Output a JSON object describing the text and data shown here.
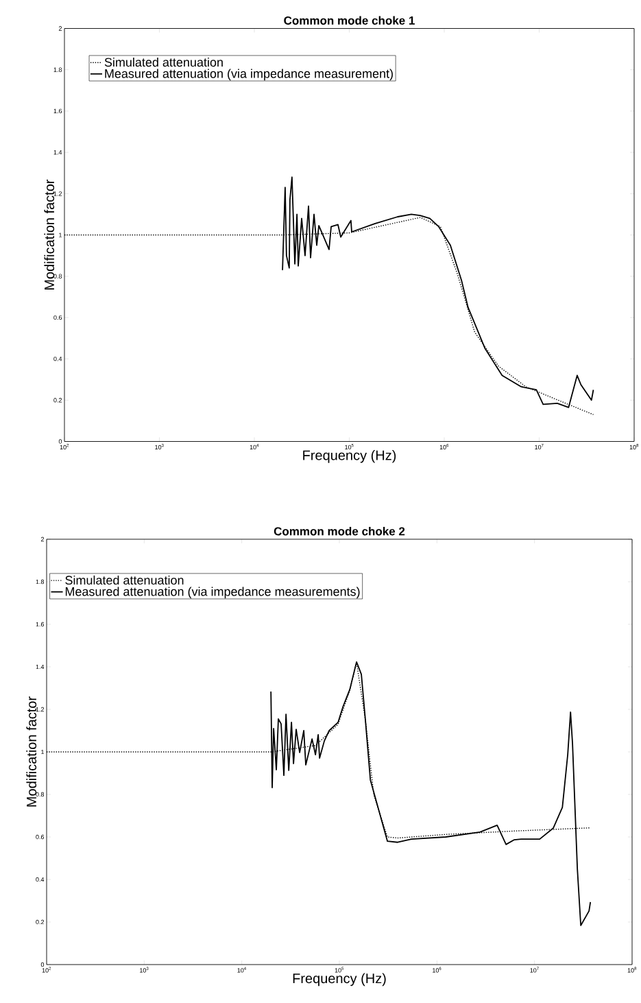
{
  "chart_data": [
    {
      "type": "line",
      "title": "Common mode choke 1",
      "xlabel": "Frequency (Hz)",
      "ylabel": "Modification factor",
      "log": "x",
      "legend": "top left",
      "xlim": [
        100,
        100000000
      ],
      "ylim": [
        0,
        2
      ],
      "xticks": [
        {
          "value": 100,
          "label": "10$^{2}$"
        },
        {
          "value": 1000,
          "label": "10$^{3}$"
        },
        {
          "value": 10000,
          "label": "10$^{4}$"
        },
        {
          "value": 100000,
          "label": "10$^{5}$"
        },
        {
          "value": 1000000,
          "label": "10$^{6}$"
        },
        {
          "value": 10000000,
          "label": "10$^{7}$"
        },
        {
          "value": 100000000,
          "label": "10$^{8}$"
        }
      ],
      "yticks": [
        0,
        0.2,
        0.4,
        0.6,
        0.8,
        1,
        1.2,
        1.4,
        1.6,
        1.8,
        2
      ],
      "series": [
        {
          "name": "Simulated attenuation",
          "color": "#000000",
          "line_style": "dotted",
          "x": [
            100,
            20000,
            100000,
            316000,
            562000,
            912000,
            1380000,
            2090000,
            3720000,
            7240000,
            15800000,
            37200000
          ],
          "values": [
            1.0,
            1.0,
            1.01,
            1.06,
            1.085,
            1.04,
            0.81,
            0.53,
            0.365,
            0.265,
            0.2,
            0.13
          ]
        },
        {
          "name": "Measured attenuation (via impedance measurement)",
          "color": "#000000",
          "line_style": "solid",
          "x": [
            19800,
            21100,
            21800,
            23300,
            23700,
            24900,
            26700,
            28100,
            29000,
            31500,
            34200,
            37200,
            39100,
            42500,
            45400,
            47800,
            61200,
            64400,
            76000,
            81300,
            104000,
            106000,
            187000,
            323000,
            450000,
            558000,
            705000,
            875000,
            1160000,
            1520000,
            1780000,
            2690000,
            4070000,
            6460000,
            9330000,
            11000000,
            15500000,
            20400000,
            25100000,
            27500000,
            35500000,
            37200000
          ],
          "values": [
            0.83,
            1.23,
            0.9,
            0.84,
            1.17,
            1.28,
            0.86,
            1.1,
            0.85,
            1.08,
            0.9,
            1.14,
            0.89,
            1.1,
            0.95,
            1.045,
            0.93,
            1.04,
            1.05,
            0.99,
            1.07,
            1.015,
            1.055,
            1.088,
            1.1,
            1.094,
            1.08,
            1.04,
            0.95,
            0.78,
            0.65,
            0.45,
            0.32,
            0.265,
            0.25,
            0.18,
            0.185,
            0.165,
            0.32,
            0.275,
            0.2,
            0.25
          ]
        }
      ]
    },
    {
      "type": "line",
      "title": "Common mode choke 2",
      "xlabel": "Frequency (Hz)",
      "ylabel": "Modification factor",
      "log": "x",
      "legend": "top left",
      "xlim": [
        100,
        100000000
      ],
      "ylim": [
        0,
        2
      ],
      "xticks": [
        {
          "value": 100,
          "label": "10$^{2}$"
        },
        {
          "value": 1000,
          "label": "10$^{3}$"
        },
        {
          "value": 10000,
          "label": "10$^{4}$"
        },
        {
          "value": 100000,
          "label": "10$^{5}$"
        },
        {
          "value": 1000000,
          "label": "10$^{6}$"
        },
        {
          "value": 10000000,
          "label": "10$^{7}$"
        },
        {
          "value": 100000000,
          "label": "10$^{8}$"
        }
      ],
      "yticks": [
        0,
        0.2,
        0.4,
        0.6,
        0.8,
        1,
        1.2,
        1.4,
        1.6,
        1.8,
        2
      ],
      "series": [
        {
          "name": "Simulated attenuation",
          "color": "#000000",
          "line_style": "dotted",
          "x": [
            100,
            20000,
            56900,
            97000,
            128000,
            150000,
            185000,
            225000,
            311000,
            396000,
            1230000,
            6210000,
            37400000
          ],
          "values": [
            1.0,
            1.0,
            1.03,
            1.13,
            1.29,
            1.42,
            1.15,
            0.8,
            0.6,
            0.595,
            0.612,
            0.628,
            0.643
          ]
        },
        {
          "name": "Measured attenuation (via impedance measurements)",
          "color": "#000000",
          "line_style": "solid",
          "x": [
            19900,
            20500,
            21200,
            22600,
            23700,
            25300,
            27000,
            28400,
            30300,
            32300,
            33900,
            36100,
            39200,
            43200,
            45300,
            52500,
            56900,
            60700,
            62700,
            70200,
            78600,
            97000,
            109000,
            128000,
            150000,
            168000,
            185000,
            208000,
            311000,
            396000,
            548000,
            1230000,
            2760000,
            4140000,
            5110000,
            6210000,
            7290000,
            11300000,
            15600000,
            19300000,
            21900000,
            23400000,
            24500000,
            27500000,
            29800000,
            36200000,
            37400000
          ],
          "values": [
            1.284,
            0.832,
            1.11,
            0.916,
            1.155,
            1.132,
            0.89,
            1.177,
            0.913,
            1.139,
            0.945,
            1.106,
            0.997,
            1.1,
            0.939,
            1.061,
            0.987,
            1.081,
            0.971,
            1.052,
            1.1,
            1.139,
            1.213,
            1.294,
            1.423,
            1.365,
            1.148,
            0.868,
            0.58,
            0.575,
            0.59,
            0.6,
            0.623,
            0.655,
            0.565,
            0.587,
            0.59,
            0.59,
            0.642,
            0.739,
            0.987,
            1.187,
            1.042,
            0.448,
            0.184,
            0.252,
            0.294
          ]
        }
      ]
    }
  ]
}
